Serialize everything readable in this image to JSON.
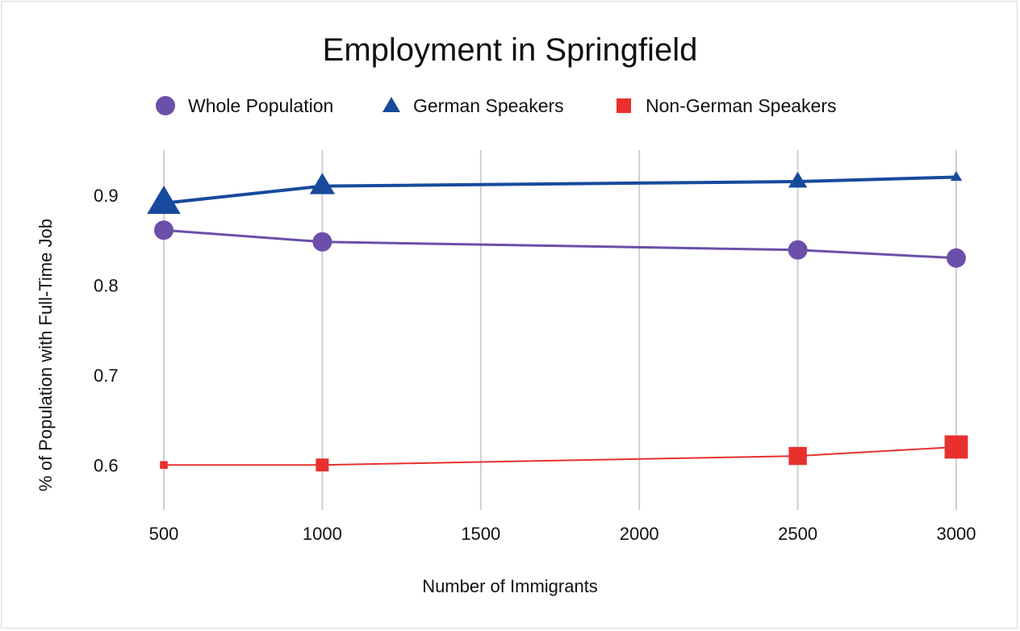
{
  "chart_data": {
    "type": "line",
    "title": "Employment in Springfield",
    "xlabel": "Number of Immigrants",
    "ylabel": "% of Population with Full-Time Job",
    "x": [
      500,
      1000,
      2500,
      3000
    ],
    "xticks": [
      "500",
      "1000",
      "1500",
      "2000",
      "2500",
      "3000"
    ],
    "xlim": [
      500,
      3000
    ],
    "yticks": [
      "0.6",
      "0.7",
      "0.8",
      "0.9"
    ],
    "ylim": [
      0.55,
      0.95
    ],
    "grid": "vertical",
    "legend_position": "top",
    "series": [
      {
        "name": "Whole Population",
        "marker": "circle",
        "color": "#6b4fa8",
        "values": [
          0.861,
          0.848,
          0.839,
          0.83
        ],
        "marker_sizes": [
          1,
          1,
          1,
          1
        ]
      },
      {
        "name": "German Speakers",
        "marker": "triangle",
        "color": "#174a9c",
        "values": [
          0.891,
          0.91,
          0.915,
          0.92
        ],
        "marker_sizes": [
          1.6,
          1.2,
          0.9,
          0.55
        ]
      },
      {
        "name": "Non-German Speakers",
        "marker": "square",
        "color": "#e8302f",
        "values": [
          0.6,
          0.6,
          0.61,
          0.62
        ],
        "marker_sizes": [
          0.6,
          1,
          1.4,
          1.8
        ]
      }
    ]
  }
}
